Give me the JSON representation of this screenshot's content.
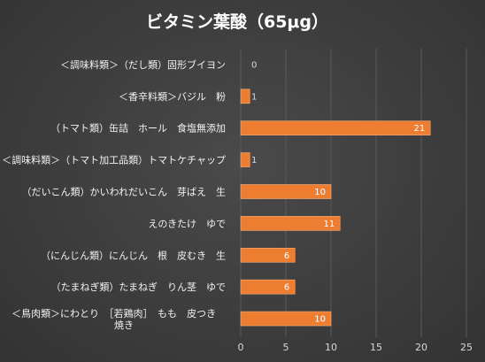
{
  "chart_data": {
    "type": "bar",
    "orientation": "horizontal",
    "title": "ビタミン葉酸（65μg）",
    "categories": [
      "＜調味料類＞（だし類）固形ブイヨン",
      "＜香辛料類＞バジル　粉",
      "（トマト類）缶詰　ホール　食塩無添加",
      "＜調味料類＞（トマト加工品類）トマトケチャップ",
      "（だいこん類）かいわれだいこん　芽ばえ　生",
      "えのきたけ　ゆで",
      "（にんじん類）にんじん　根　皮むき　生",
      "（たまねぎ類）たまねぎ　りん茎　ゆで",
      "＜鳥肉類＞にわとり　［若鶏肉］　もも　皮つき　焼き"
    ],
    "values": [
      0,
      1,
      21,
      1,
      10,
      11,
      6,
      6,
      10
    ],
    "data_labels": [
      "0",
      "1",
      "21",
      "1",
      "10",
      "11",
      "6",
      "6",
      "10"
    ],
    "xlim": [
      0,
      25
    ],
    "xticks": [
      "0",
      "5",
      "10",
      "15",
      "20",
      "25"
    ],
    "grid": "vertical",
    "legend": "none",
    "colors": {
      "bar": "#ed7d31",
      "bar_edge": "#f4b183",
      "grid": "#5a5a5a",
      "background": "#404040",
      "label_inside": "#ffffff",
      "label_outside": "#d9d9d9"
    }
  }
}
